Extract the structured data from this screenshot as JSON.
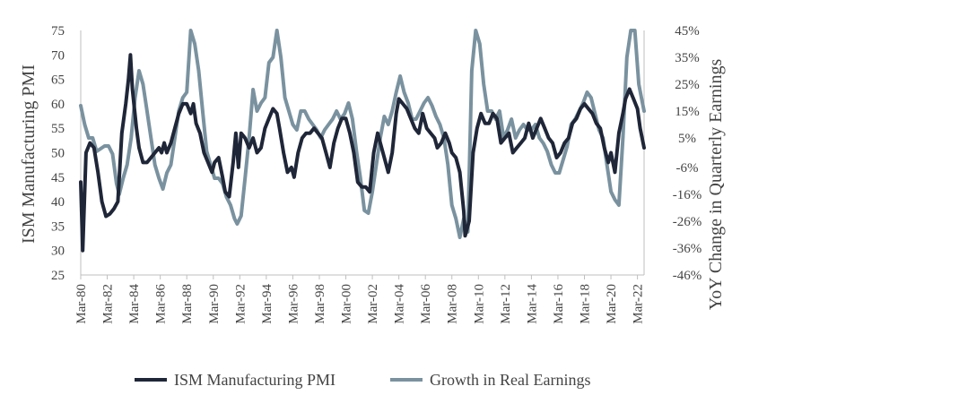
{
  "chart_data": {
    "type": "line",
    "title": "",
    "xlabel": "",
    "ylabel_left": "ISM Manufacturing PMI",
    "ylabel_right": "YoY Change in Quarterly Earnings",
    "x_start_year": 1980,
    "x_end_year": 2022.5,
    "x_tick_labels": [
      "Mar-80",
      "Mar-82",
      "Mar-84",
      "Mar-86",
      "Mar-88",
      "Mar-90",
      "Mar-92",
      "Mar-94",
      "Mar-96",
      "Mar-98",
      "Mar-00",
      "Mar-02",
      "Mar-04",
      "Mar-06",
      "Mar-08",
      "Mar-10",
      "Mar-12",
      "Mar-14",
      "Mar-16",
      "Mar-18",
      "Mar-20",
      "Mar-22"
    ],
    "x_tick_years": [
      1980,
      1982,
      1984,
      1986,
      1988,
      1990,
      1992,
      1994,
      1996,
      1998,
      2000,
      2002,
      2004,
      2006,
      2008,
      2010,
      2012,
      2014,
      2016,
      2018,
      2020,
      2022
    ],
    "y_left": {
      "min": 25,
      "max": 75,
      "ticks": [
        25,
        30,
        35,
        40,
        45,
        50,
        55,
        60,
        65,
        70,
        75
      ]
    },
    "y_right": {
      "min": -46,
      "max": 45,
      "tick_labels": [
        "-46%",
        "-36%",
        "-26%",
        "-16%",
        "-6%",
        "5%",
        "15%",
        "25%",
        "35%",
        "45%"
      ],
      "tick_values": [
        -46,
        -36,
        -26,
        -16,
        -6,
        5,
        15,
        25,
        35,
        45
      ]
    },
    "legend_position": "bottom",
    "colors": {
      "pmi": "#1f2638",
      "earnings": "#7a929f",
      "axis": "#bfbfbf",
      "text": "#444444"
    },
    "series": [
      {
        "name": "ISM Manufacturing PMI",
        "axis": "left",
        "color": "#1f2638",
        "points": [
          [
            1980.0,
            44
          ],
          [
            1980.15,
            30
          ],
          [
            1980.4,
            50
          ],
          [
            1980.7,
            52
          ],
          [
            1981.0,
            51
          ],
          [
            1981.3,
            46
          ],
          [
            1981.6,
            40
          ],
          [
            1981.9,
            37
          ],
          [
            1982.2,
            37.5
          ],
          [
            1982.5,
            38.5
          ],
          [
            1982.8,
            40
          ],
          [
            1983.1,
            54
          ],
          [
            1983.4,
            60
          ],
          [
            1983.6,
            65
          ],
          [
            1983.75,
            70
          ],
          [
            1983.9,
            63
          ],
          [
            1984.2,
            55
          ],
          [
            1984.4,
            51
          ],
          [
            1984.7,
            48
          ],
          [
            1985.0,
            48
          ],
          [
            1985.3,
            49
          ],
          [
            1985.6,
            50
          ],
          [
            1985.9,
            51
          ],
          [
            1986.1,
            50
          ],
          [
            1986.3,
            52
          ],
          [
            1986.5,
            50
          ],
          [
            1986.8,
            52
          ],
          [
            1987.1,
            55
          ],
          [
            1987.4,
            58
          ],
          [
            1987.7,
            60
          ],
          [
            1988.0,
            60
          ],
          [
            1988.3,
            58
          ],
          [
            1988.5,
            60
          ],
          [
            1988.7,
            56
          ],
          [
            1989.0,
            54
          ],
          [
            1989.3,
            50
          ],
          [
            1989.6,
            48
          ],
          [
            1989.9,
            46
          ],
          [
            1990.1,
            48
          ],
          [
            1990.4,
            49
          ],
          [
            1990.7,
            45
          ],
          [
            1990.9,
            42
          ],
          [
            1991.2,
            41
          ],
          [
            1991.5,
            48
          ],
          [
            1991.7,
            54
          ],
          [
            1991.9,
            47
          ],
          [
            1992.1,
            54
          ],
          [
            1992.4,
            53
          ],
          [
            1992.7,
            51
          ],
          [
            1993.0,
            53
          ],
          [
            1993.3,
            50
          ],
          [
            1993.6,
            51
          ],
          [
            1993.9,
            55
          ],
          [
            1994.2,
            57
          ],
          [
            1994.5,
            59
          ],
          [
            1994.8,
            58
          ],
          [
            1995.0,
            55
          ],
          [
            1995.3,
            50
          ],
          [
            1995.6,
            46
          ],
          [
            1995.9,
            47
          ],
          [
            1996.1,
            45
          ],
          [
            1996.4,
            50
          ],
          [
            1996.7,
            53
          ],
          [
            1997.0,
            54
          ],
          [
            1997.3,
            54
          ],
          [
            1997.6,
            55
          ],
          [
            1997.9,
            54
          ],
          [
            1998.2,
            53
          ],
          [
            1998.5,
            50
          ],
          [
            1998.8,
            47
          ],
          [
            1999.1,
            52
          ],
          [
            1999.4,
            55
          ],
          [
            1999.7,
            57
          ],
          [
            2000.0,
            57
          ],
          [
            2000.3,
            54
          ],
          [
            2000.6,
            50
          ],
          [
            2000.9,
            44
          ],
          [
            2001.2,
            43
          ],
          [
            2001.5,
            43
          ],
          [
            2001.8,
            42
          ],
          [
            2002.1,
            50
          ],
          [
            2002.4,
            54
          ],
          [
            2002.7,
            51
          ],
          [
            2002.9,
            49
          ],
          [
            2003.2,
            46
          ],
          [
            2003.5,
            50
          ],
          [
            2003.8,
            58
          ],
          [
            2004.0,
            61
          ],
          [
            2004.3,
            60
          ],
          [
            2004.6,
            59
          ],
          [
            2004.9,
            57
          ],
          [
            2005.2,
            55
          ],
          [
            2005.5,
            54
          ],
          [
            2005.8,
            58
          ],
          [
            2006.1,
            55
          ],
          [
            2006.4,
            54
          ],
          [
            2006.7,
            53
          ],
          [
            2006.9,
            51
          ],
          [
            2007.2,
            52
          ],
          [
            2007.5,
            54
          ],
          [
            2007.8,
            52
          ],
          [
            2008.0,
            50
          ],
          [
            2008.3,
            49
          ],
          [
            2008.6,
            46
          ],
          [
            2008.9,
            38
          ],
          [
            2009.0,
            33
          ],
          [
            2009.3,
            36
          ],
          [
            2009.6,
            50
          ],
          [
            2009.9,
            55
          ],
          [
            2010.2,
            58
          ],
          [
            2010.5,
            56
          ],
          [
            2010.8,
            56
          ],
          [
            2011.1,
            58
          ],
          [
            2011.4,
            57
          ],
          [
            2011.7,
            52
          ],
          [
            2012.0,
            53
          ],
          [
            2012.3,
            54
          ],
          [
            2012.6,
            50
          ],
          [
            2012.9,
            51
          ],
          [
            2013.2,
            52
          ],
          [
            2013.5,
            53
          ],
          [
            2013.8,
            56
          ],
          [
            2014.1,
            53
          ],
          [
            2014.4,
            55
          ],
          [
            2014.7,
            57
          ],
          [
            2015.0,
            55
          ],
          [
            2015.3,
            53
          ],
          [
            2015.6,
            52
          ],
          [
            2015.9,
            49
          ],
          [
            2016.2,
            50
          ],
          [
            2016.5,
            52
          ],
          [
            2016.8,
            53
          ],
          [
            2017.1,
            56
          ],
          [
            2017.4,
            57
          ],
          [
            2017.7,
            59
          ],
          [
            2018.0,
            60
          ],
          [
            2018.3,
            59
          ],
          [
            2018.6,
            58
          ],
          [
            2018.9,
            56
          ],
          [
            2019.2,
            55
          ],
          [
            2019.5,
            51
          ],
          [
            2019.8,
            48
          ],
          [
            2020.0,
            50
          ],
          [
            2020.3,
            46
          ],
          [
            2020.6,
            54
          ],
          [
            2020.9,
            58
          ],
          [
            2021.1,
            61
          ],
          [
            2021.4,
            63
          ],
          [
            2021.7,
            61
          ],
          [
            2022.0,
            59
          ],
          [
            2022.2,
            55
          ],
          [
            2022.5,
            51
          ]
        ]
      },
      {
        "name": "Growth in Real Earnings",
        "axis": "right",
        "color": "#7a929f",
        "points": [
          [
            1980.0,
            17
          ],
          [
            1980.3,
            10
          ],
          [
            1980.6,
            5
          ],
          [
            1980.9,
            5
          ],
          [
            1981.2,
            0
          ],
          [
            1981.5,
            1
          ],
          [
            1981.8,
            2
          ],
          [
            1982.1,
            2
          ],
          [
            1982.4,
            -1
          ],
          [
            1982.7,
            -12
          ],
          [
            1982.9,
            -16
          ],
          [
            1983.2,
            -10
          ],
          [
            1983.5,
            -5
          ],
          [
            1983.8,
            5
          ],
          [
            1984.1,
            20
          ],
          [
            1984.4,
            30
          ],
          [
            1984.7,
            25
          ],
          [
            1985.0,
            15
          ],
          [
            1985.3,
            5
          ],
          [
            1985.6,
            -5
          ],
          [
            1985.9,
            -10
          ],
          [
            1986.2,
            -14
          ],
          [
            1986.5,
            -8
          ],
          [
            1986.8,
            -5
          ],
          [
            1987.1,
            5
          ],
          [
            1987.4,
            15
          ],
          [
            1987.7,
            20
          ],
          [
            1988.0,
            22
          ],
          [
            1988.3,
            45
          ],
          [
            1988.6,
            40
          ],
          [
            1988.9,
            30
          ],
          [
            1989.2,
            15
          ],
          [
            1989.5,
            0
          ],
          [
            1989.8,
            -5
          ],
          [
            1990.1,
            -10
          ],
          [
            1990.4,
            -10
          ],
          [
            1990.7,
            -12
          ],
          [
            1991.0,
            -17
          ],
          [
            1991.3,
            -20
          ],
          [
            1991.6,
            -25
          ],
          [
            1991.8,
            -27
          ],
          [
            1992.1,
            -24
          ],
          [
            1992.4,
            -10
          ],
          [
            1992.7,
            5
          ],
          [
            1993.0,
            23
          ],
          [
            1993.3,
            15
          ],
          [
            1993.6,
            18
          ],
          [
            1993.9,
            20
          ],
          [
            1994.2,
            33
          ],
          [
            1994.5,
            35
          ],
          [
            1994.8,
            45
          ],
          [
            1995.1,
            35
          ],
          [
            1995.4,
            20
          ],
          [
            1995.7,
            15
          ],
          [
            1996.0,
            10
          ],
          [
            1996.3,
            8
          ],
          [
            1996.6,
            15
          ],
          [
            1996.9,
            15
          ],
          [
            1997.2,
            12
          ],
          [
            1997.5,
            10
          ],
          [
            1997.8,
            8
          ],
          [
            1998.1,
            5
          ],
          [
            1998.4,
            8
          ],
          [
            1998.7,
            10
          ],
          [
            1999.0,
            12
          ],
          [
            1999.3,
            15
          ],
          [
            1999.6,
            12
          ],
          [
            1999.9,
            14
          ],
          [
            2000.2,
            18
          ],
          [
            2000.5,
            12
          ],
          [
            2000.8,
            0
          ],
          [
            2001.1,
            -10
          ],
          [
            2001.4,
            -22
          ],
          [
            2001.7,
            -23
          ],
          [
            2002.0,
            -15
          ],
          [
            2002.3,
            -5
          ],
          [
            2002.6,
            5
          ],
          [
            2002.9,
            13
          ],
          [
            2003.2,
            10
          ],
          [
            2003.5,
            15
          ],
          [
            2003.8,
            22
          ],
          [
            2004.1,
            28
          ],
          [
            2004.4,
            22
          ],
          [
            2004.7,
            18
          ],
          [
            2005.0,
            12
          ],
          [
            2005.3,
            12
          ],
          [
            2005.6,
            15
          ],
          [
            2005.9,
            18
          ],
          [
            2006.2,
            20
          ],
          [
            2006.5,
            17
          ],
          [
            2006.8,
            13
          ],
          [
            2007.1,
            10
          ],
          [
            2007.4,
            5
          ],
          [
            2007.7,
            -5
          ],
          [
            2008.0,
            -20
          ],
          [
            2008.3,
            -25
          ],
          [
            2008.6,
            -32
          ],
          [
            2008.9,
            -25
          ],
          [
            2009.2,
            -30
          ],
          [
            2009.5,
            30
          ],
          [
            2009.8,
            45
          ],
          [
            2010.1,
            40
          ],
          [
            2010.4,
            25
          ],
          [
            2010.7,
            15
          ],
          [
            2011.0,
            15
          ],
          [
            2011.3,
            12
          ],
          [
            2011.6,
            15
          ],
          [
            2011.9,
            5
          ],
          [
            2012.2,
            8
          ],
          [
            2012.5,
            12
          ],
          [
            2012.8,
            5
          ],
          [
            2013.1,
            8
          ],
          [
            2013.4,
            10
          ],
          [
            2013.7,
            8
          ],
          [
            2014.0,
            8
          ],
          [
            2014.3,
            10
          ],
          [
            2014.6,
            5
          ],
          [
            2014.9,
            3
          ],
          [
            2015.2,
            0
          ],
          [
            2015.5,
            -5
          ],
          [
            2015.8,
            -8
          ],
          [
            2016.1,
            -8
          ],
          [
            2016.4,
            -3
          ],
          [
            2016.7,
            2
          ],
          [
            2017.0,
            10
          ],
          [
            2017.3,
            12
          ],
          [
            2017.6,
            15
          ],
          [
            2017.9,
            18
          ],
          [
            2018.2,
            22
          ],
          [
            2018.5,
            20
          ],
          [
            2018.8,
            14
          ],
          [
            2019.1,
            8
          ],
          [
            2019.4,
            5
          ],
          [
            2019.7,
            -5
          ],
          [
            2020.0,
            -15
          ],
          [
            2020.3,
            -18
          ],
          [
            2020.6,
            -20
          ],
          [
            2020.9,
            5
          ],
          [
            2021.2,
            35
          ],
          [
            2021.5,
            45
          ],
          [
            2021.8,
            45
          ],
          [
            2022.1,
            25
          ],
          [
            2022.3,
            20
          ],
          [
            2022.5,
            15
          ]
        ]
      }
    ]
  }
}
